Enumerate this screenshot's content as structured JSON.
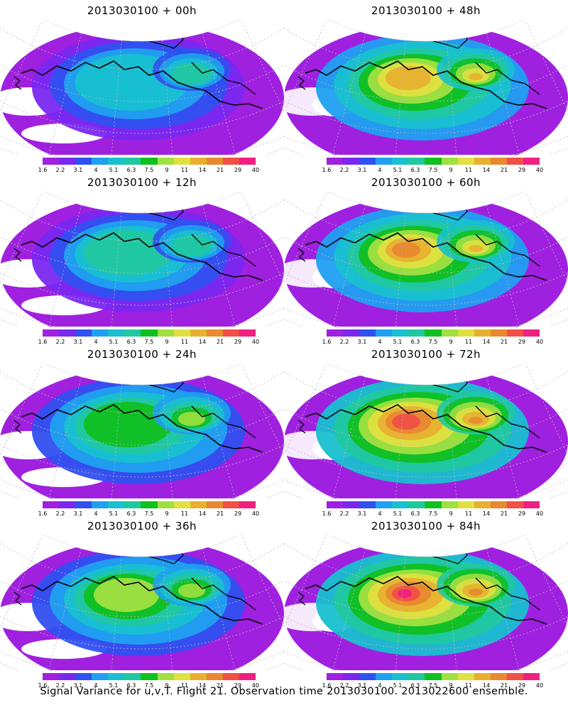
{
  "panels": [
    {
      "title": "2013030100 + 00h",
      "lead_hours": 0
    },
    {
      "title": "2013030100 + 48h",
      "lead_hours": 48
    },
    {
      "title": "2013030100 + 12h",
      "lead_hours": 12
    },
    {
      "title": "2013030100 + 60h",
      "lead_hours": 60
    },
    {
      "title": "2013030100 + 24h",
      "lead_hours": 24
    },
    {
      "title": "2013030100 + 72h",
      "lead_hours": 72
    },
    {
      "title": "2013030100 + 36h",
      "lead_hours": 36
    },
    {
      "title": "2013030100 + 84h",
      "lead_hours": 84
    }
  ],
  "colorbar": {
    "labels": [
      "1.6",
      "2.2",
      "3.1",
      "4",
      "5.1",
      "6.3",
      "7.5",
      "9",
      "11",
      "14",
      "21",
      "29",
      "40"
    ],
    "colors": [
      "#a020e0",
      "#7a28f0",
      "#3050f0",
      "#20a0f0",
      "#18c0d0",
      "#20c8a0",
      "#10c020",
      "#a0e040",
      "#e0e040",
      "#e8b030",
      "#e88830",
      "#f05048",
      "#f02080"
    ]
  },
  "footer": "Signal Variance for u,v,T. Flight 21. Observation time 2013030100. 2013022600 ensemble."
}
